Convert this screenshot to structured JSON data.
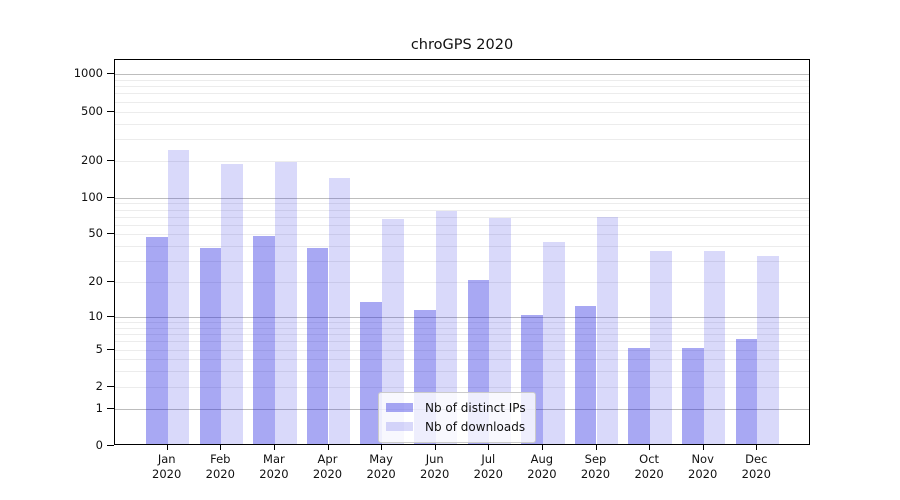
{
  "title": "chroGPS 2020",
  "legend": {
    "items": [
      {
        "label": "Nb of distinct IPs",
        "color": "rgba(32,32,224,0.39)"
      },
      {
        "label": "Nb of downloads",
        "color": "rgba(32,32,224,0.17)"
      }
    ]
  },
  "axes": {
    "y_tick_values": [
      0,
      1,
      2,
      5,
      10,
      20,
      50,
      100,
      200,
      500,
      1000
    ],
    "y_major_gridlines": [
      1,
      10,
      100,
      1000
    ],
    "y_minor_gridlines": [
      2,
      3,
      4,
      5,
      6,
      7,
      8,
      9,
      20,
      30,
      40,
      50,
      60,
      70,
      80,
      90,
      200,
      300,
      400,
      500,
      600,
      700,
      800,
      900
    ],
    "x_categories": [
      {
        "month": "Jan",
        "year": "2020"
      },
      {
        "month": "Feb",
        "year": "2020"
      },
      {
        "month": "Mar",
        "year": "2020"
      },
      {
        "month": "Apr",
        "year": "2020"
      },
      {
        "month": "May",
        "year": "2020"
      },
      {
        "month": "Jun",
        "year": "2020"
      },
      {
        "month": "Jul",
        "year": "2020"
      },
      {
        "month": "Aug",
        "year": "2020"
      },
      {
        "month": "Sep",
        "year": "2020"
      },
      {
        "month": "Oct",
        "year": "2020"
      },
      {
        "month": "Nov",
        "year": "2020"
      },
      {
        "month": "Dec",
        "year": "2020"
      }
    ]
  },
  "chart_data": {
    "type": "bar",
    "title": "chroGPS 2020",
    "y_scale": "log1p",
    "ylim": [
      0,
      1300
    ],
    "grid": true,
    "legend_position": "lower-center-inside",
    "categories": [
      "Jan 2020",
      "Feb 2020",
      "Mar 2020",
      "Apr 2020",
      "May 2020",
      "Jun 2020",
      "Jul 2020",
      "Aug 2020",
      "Sep 2020",
      "Oct 2020",
      "Nov 2020",
      "Dec 2020"
    ],
    "series": [
      {
        "name": "Nb of distinct IPs",
        "color": "rgba(32,32,224,0.39)",
        "values": [
          46,
          37,
          47,
          37,
          13,
          11,
          20,
          10,
          12,
          5,
          5,
          6
        ]
      },
      {
        "name": "Nb of downloads",
        "color": "rgba(32,32,224,0.17)",
        "values": [
          235,
          180,
          188,
          140,
          64,
          75,
          66,
          42,
          67,
          35,
          35,
          32
        ]
      }
    ]
  }
}
